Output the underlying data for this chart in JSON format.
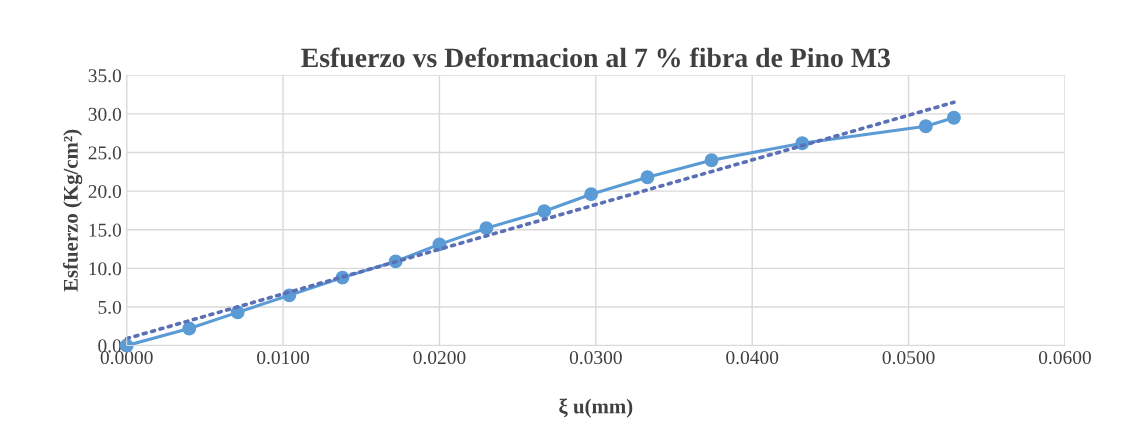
{
  "chart_data": {
    "type": "line",
    "title": "Esfuerzo vs Deformacion al 7 % fibra de Pino M3",
    "xlabel": "ξ u(mm)",
    "ylabel": "Esfuerzo (Kg/cm²)",
    "series": [
      {
        "color": "#5b9bd5",
        "marker": "circle",
        "line_style": "solid",
        "x": [
          0.0,
          0.004,
          0.0071,
          0.0104,
          0.0138,
          0.0172,
          0.02,
          0.023,
          0.0267,
          0.0297,
          0.0333,
          0.0374,
          0.0432,
          0.0511,
          0.0529
        ],
        "values": [
          0.0,
          2.2,
          4.3,
          6.5,
          8.8,
          10.9,
          13.1,
          15.2,
          17.4,
          19.6,
          21.8,
          24.0,
          26.2,
          28.4,
          29.5
        ]
      },
      {
        "color": "#5a6fb5",
        "marker": "none",
        "line_style": "dotted",
        "x": [
          0.0,
          0.0529
        ],
        "values": [
          0.9,
          31.5
        ]
      }
    ],
    "xlim": [
      0.0,
      0.06
    ],
    "ylim": [
      0.0,
      35.0
    ],
    "xticks": [
      {
        "value": 0.0,
        "label": "0.0000"
      },
      {
        "value": 0.01,
        "label": "0.0100"
      },
      {
        "value": 0.02,
        "label": "0.0200"
      },
      {
        "value": 0.03,
        "label": "0.0300"
      },
      {
        "value": 0.04,
        "label": "0.0400"
      },
      {
        "value": 0.05,
        "label": "0.0500"
      },
      {
        "value": 0.06,
        "label": "0.0600"
      }
    ],
    "yticks": [
      {
        "value": 0,
        "label": "0.0"
      },
      {
        "value": 5,
        "label": "5.0"
      },
      {
        "value": 10,
        "label": "10.0"
      },
      {
        "value": 15,
        "label": "15.0"
      },
      {
        "value": 20,
        "label": "20.0"
      },
      {
        "value": 25,
        "label": "25.0"
      },
      {
        "value": 30,
        "label": "30.0"
      },
      {
        "value": 35,
        "label": "35.0"
      }
    ],
    "grid": true,
    "legend": false
  }
}
